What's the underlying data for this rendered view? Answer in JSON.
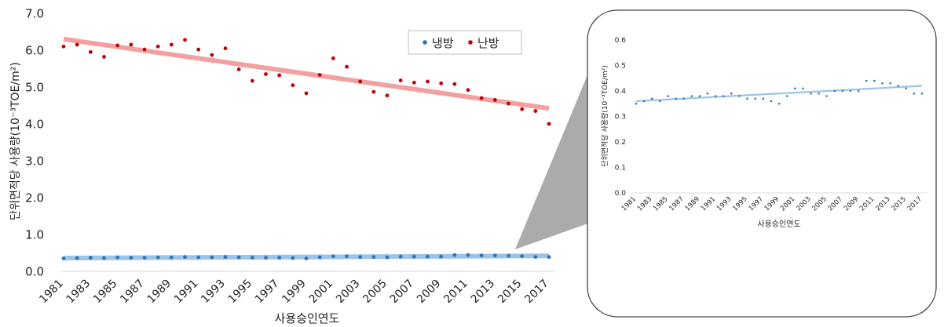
{
  "chart_data": [
    {
      "type": "scatter",
      "xlabel": "사용승인연도",
      "ylabel": "단위면적당 사용량(10⁻³TOE/m²)",
      "ylim": [
        0,
        7
      ],
      "yticks": [
        "0.0",
        "1.0",
        "2.0",
        "3.0",
        "4.0",
        "5.0",
        "6.0",
        "7.0"
      ],
      "xticks": [
        "1981",
        "1983",
        "1985",
        "1987",
        "1989",
        "1991",
        "1993",
        "1995",
        "1997",
        "1999",
        "2001",
        "2003",
        "2005",
        "2007",
        "2009",
        "2011",
        "2013",
        "2015",
        "2017"
      ],
      "grid": false,
      "legend_position": "top-right",
      "series": [
        {
          "name": "냉방",
          "color": "#2e75b6",
          "trend_color": "#9dc3e6",
          "x": [
            1981,
            1982,
            1983,
            1984,
            1985,
            1986,
            1987,
            1988,
            1989,
            1990,
            1991,
            1992,
            1993,
            1994,
            1995,
            1996,
            1997,
            1998,
            1999,
            2000,
            2001,
            2002,
            2003,
            2004,
            2005,
            2006,
            2007,
            2008,
            2009,
            2010,
            2011,
            2012,
            2013,
            2014,
            2015,
            2016,
            2017
          ],
          "values": [
            0.35,
            0.36,
            0.37,
            0.36,
            0.38,
            0.37,
            0.37,
            0.38,
            0.38,
            0.39,
            0.38,
            0.38,
            0.39,
            0.38,
            0.37,
            0.37,
            0.37,
            0.36,
            0.35,
            0.38,
            0.41,
            0.41,
            0.39,
            0.39,
            0.38,
            0.4,
            0.4,
            0.4,
            0.4,
            0.44,
            0.44,
            0.43,
            0.43,
            0.42,
            0.41,
            0.39,
            0.39
          ],
          "trend": [
            0.36,
            0.42
          ]
        },
        {
          "name": "난방",
          "color": "#c00000",
          "trend_color": "#f4a0a0",
          "x": [
            1981,
            1982,
            1983,
            1984,
            1985,
            1986,
            1987,
            1988,
            1989,
            1990,
            1991,
            1992,
            1993,
            1994,
            1995,
            1996,
            1997,
            1998,
            1999,
            2000,
            2001,
            2002,
            2003,
            2004,
            2005,
            2006,
            2007,
            2008,
            2009,
            2010,
            2011,
            2012,
            2013,
            2014,
            2015,
            2016,
            2017
          ],
          "values": [
            6.1,
            6.15,
            5.95,
            5.82,
            6.13,
            6.15,
            6.02,
            6.1,
            6.15,
            6.28,
            6.02,
            5.87,
            6.05,
            5.48,
            5.17,
            5.35,
            5.32,
            5.05,
            4.83,
            5.33,
            5.78,
            5.55,
            5.15,
            4.87,
            4.77,
            5.18,
            5.12,
            5.15,
            5.1,
            5.08,
            4.92,
            4.7,
            4.65,
            4.55,
            4.4,
            4.35,
            4.0
          ],
          "trend": [
            6.3,
            4.42
          ]
        }
      ]
    },
    {
      "type": "scatter",
      "xlabel": "사용승인연도",
      "ylabel": "단위면적당 사용량(10⁻³TOE/m²)",
      "ylim": [
        0,
        0.6
      ],
      "yticks": [
        "0.0",
        "0.1",
        "0.2",
        "0.3",
        "0.4",
        "0.5",
        "0.6"
      ],
      "xticks": [
        "1981",
        "1983",
        "1985",
        "1987",
        "1989",
        "1991",
        "1993",
        "1995",
        "1997",
        "1999",
        "2001",
        "2003",
        "2005",
        "2007",
        "2009",
        "2011",
        "2013",
        "2015",
        "2017"
      ],
      "grid": false,
      "series": [
        {
          "color": "#2e75b6",
          "trend_color": "#9dc3e6",
          "x": [
            1981,
            1982,
            1983,
            1984,
            1985,
            1986,
            1987,
            1988,
            1989,
            1990,
            1991,
            1992,
            1993,
            1994,
            1995,
            1996,
            1997,
            1998,
            1999,
            2000,
            2001,
            2002,
            2003,
            2004,
            2005,
            2006,
            2007,
            2008,
            2009,
            2010,
            2011,
            2012,
            2013,
            2014,
            2015,
            2016,
            2017
          ],
          "values": [
            0.35,
            0.36,
            0.37,
            0.36,
            0.38,
            0.37,
            0.37,
            0.38,
            0.38,
            0.39,
            0.38,
            0.38,
            0.39,
            0.38,
            0.37,
            0.37,
            0.37,
            0.36,
            0.35,
            0.38,
            0.41,
            0.41,
            0.39,
            0.39,
            0.38,
            0.4,
            0.4,
            0.4,
            0.4,
            0.44,
            0.44,
            0.43,
            0.43,
            0.42,
            0.41,
            0.39,
            0.39
          ],
          "trend": [
            0.36,
            0.42
          ]
        }
      ]
    }
  ]
}
